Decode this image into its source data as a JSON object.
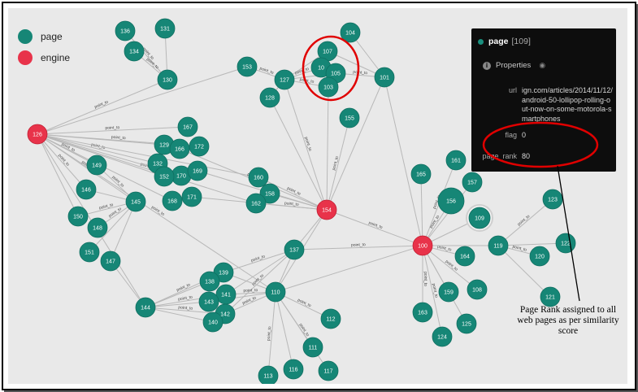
{
  "legend": [
    {
      "label": "page",
      "color": "#168676"
    },
    {
      "label": "engine",
      "color": "#e8334a"
    }
  ],
  "edge_label": "point_to",
  "colors": {
    "page": "#168676",
    "engine": "#e8334a",
    "edge": "#b8b8b8",
    "highlight": "#e00000",
    "panel_bg": "#0d0d0d"
  },
  "nodes": [
    {
      "id": "126",
      "type": "engine"
    },
    {
      "id": "154",
      "type": "engine"
    },
    {
      "id": "100",
      "type": "engine"
    },
    {
      "id": "136",
      "type": "page"
    },
    {
      "id": "131",
      "type": "page"
    },
    {
      "id": "134",
      "type": "page"
    },
    {
      "id": "130",
      "type": "page"
    },
    {
      "id": "153",
      "type": "page"
    },
    {
      "id": "127",
      "type": "page"
    },
    {
      "id": "128",
      "type": "page"
    },
    {
      "id": "107",
      "type": "page"
    },
    {
      "id": "10",
      "type": "page"
    },
    {
      "id": "105",
      "type": "page"
    },
    {
      "id": "103",
      "type": "page"
    },
    {
      "id": "104",
      "type": "page"
    },
    {
      "id": "101",
      "type": "page"
    },
    {
      "id": "155",
      "type": "page"
    },
    {
      "id": "167",
      "type": "page"
    },
    {
      "id": "129",
      "type": "page"
    },
    {
      "id": "166",
      "type": "page"
    },
    {
      "id": "172",
      "type": "page"
    },
    {
      "id": "132",
      "type": "page"
    },
    {
      "id": "170",
      "type": "page"
    },
    {
      "id": "169",
      "type": "page"
    },
    {
      "id": "152",
      "type": "page"
    },
    {
      "id": "171",
      "type": "page"
    },
    {
      "id": "168",
      "type": "page"
    },
    {
      "id": "160",
      "type": "page"
    },
    {
      "id": "158",
      "type": "page"
    },
    {
      "id": "162",
      "type": "page"
    },
    {
      "id": "149",
      "type": "page"
    },
    {
      "id": "146",
      "type": "page"
    },
    {
      "id": "145",
      "type": "page"
    },
    {
      "id": "150",
      "type": "page"
    },
    {
      "id": "148",
      "type": "page"
    },
    {
      "id": "151",
      "type": "page"
    },
    {
      "id": "147",
      "type": "page"
    },
    {
      "id": "137",
      "type": "page"
    },
    {
      "id": "139",
      "type": "page"
    },
    {
      "id": "138",
      "type": "page"
    },
    {
      "id": "141",
      "type": "page"
    },
    {
      "id": "143",
      "type": "page"
    },
    {
      "id": "110",
      "type": "page"
    },
    {
      "id": "142",
      "type": "page"
    },
    {
      "id": "140",
      "type": "page"
    },
    {
      "id": "144",
      "type": "page"
    },
    {
      "id": "112",
      "type": "page"
    },
    {
      "id": "111",
      "type": "page"
    },
    {
      "id": "113",
      "type": "page"
    },
    {
      "id": "116",
      "type": "page"
    },
    {
      "id": "117",
      "type": "page"
    },
    {
      "id": "165",
      "type": "page"
    },
    {
      "id": "161",
      "type": "page"
    },
    {
      "id": "157",
      "type": "page"
    },
    {
      "id": "156",
      "type": "page"
    },
    {
      "id": "109",
      "type": "page"
    },
    {
      "id": "164",
      "type": "page"
    },
    {
      "id": "119",
      "type": "page"
    },
    {
      "id": "123",
      "type": "page"
    },
    {
      "id": "122",
      "type": "page"
    },
    {
      "id": "120",
      "type": "page"
    },
    {
      "id": "121",
      "type": "page"
    },
    {
      "id": "108",
      "type": "page"
    },
    {
      "id": "159",
      "type": "page"
    },
    {
      "id": "163",
      "type": "page"
    },
    {
      "id": "125",
      "type": "page"
    },
    {
      "id": "124",
      "type": "page"
    }
  ],
  "panel": {
    "title": "page",
    "node_id": "[109]",
    "properties_label": "Properties",
    "url_key": "url",
    "url_value": "ign.com/articles/2014/11/12/android-50-lollipop-rolling-out-now-on-some-motorola-smartphones",
    "flag_key": "flag",
    "flag_value": "0",
    "rank_key": "page_rank",
    "rank_value": "80"
  },
  "annotation": "Page Rank assigned to all web pages as per similarity score"
}
